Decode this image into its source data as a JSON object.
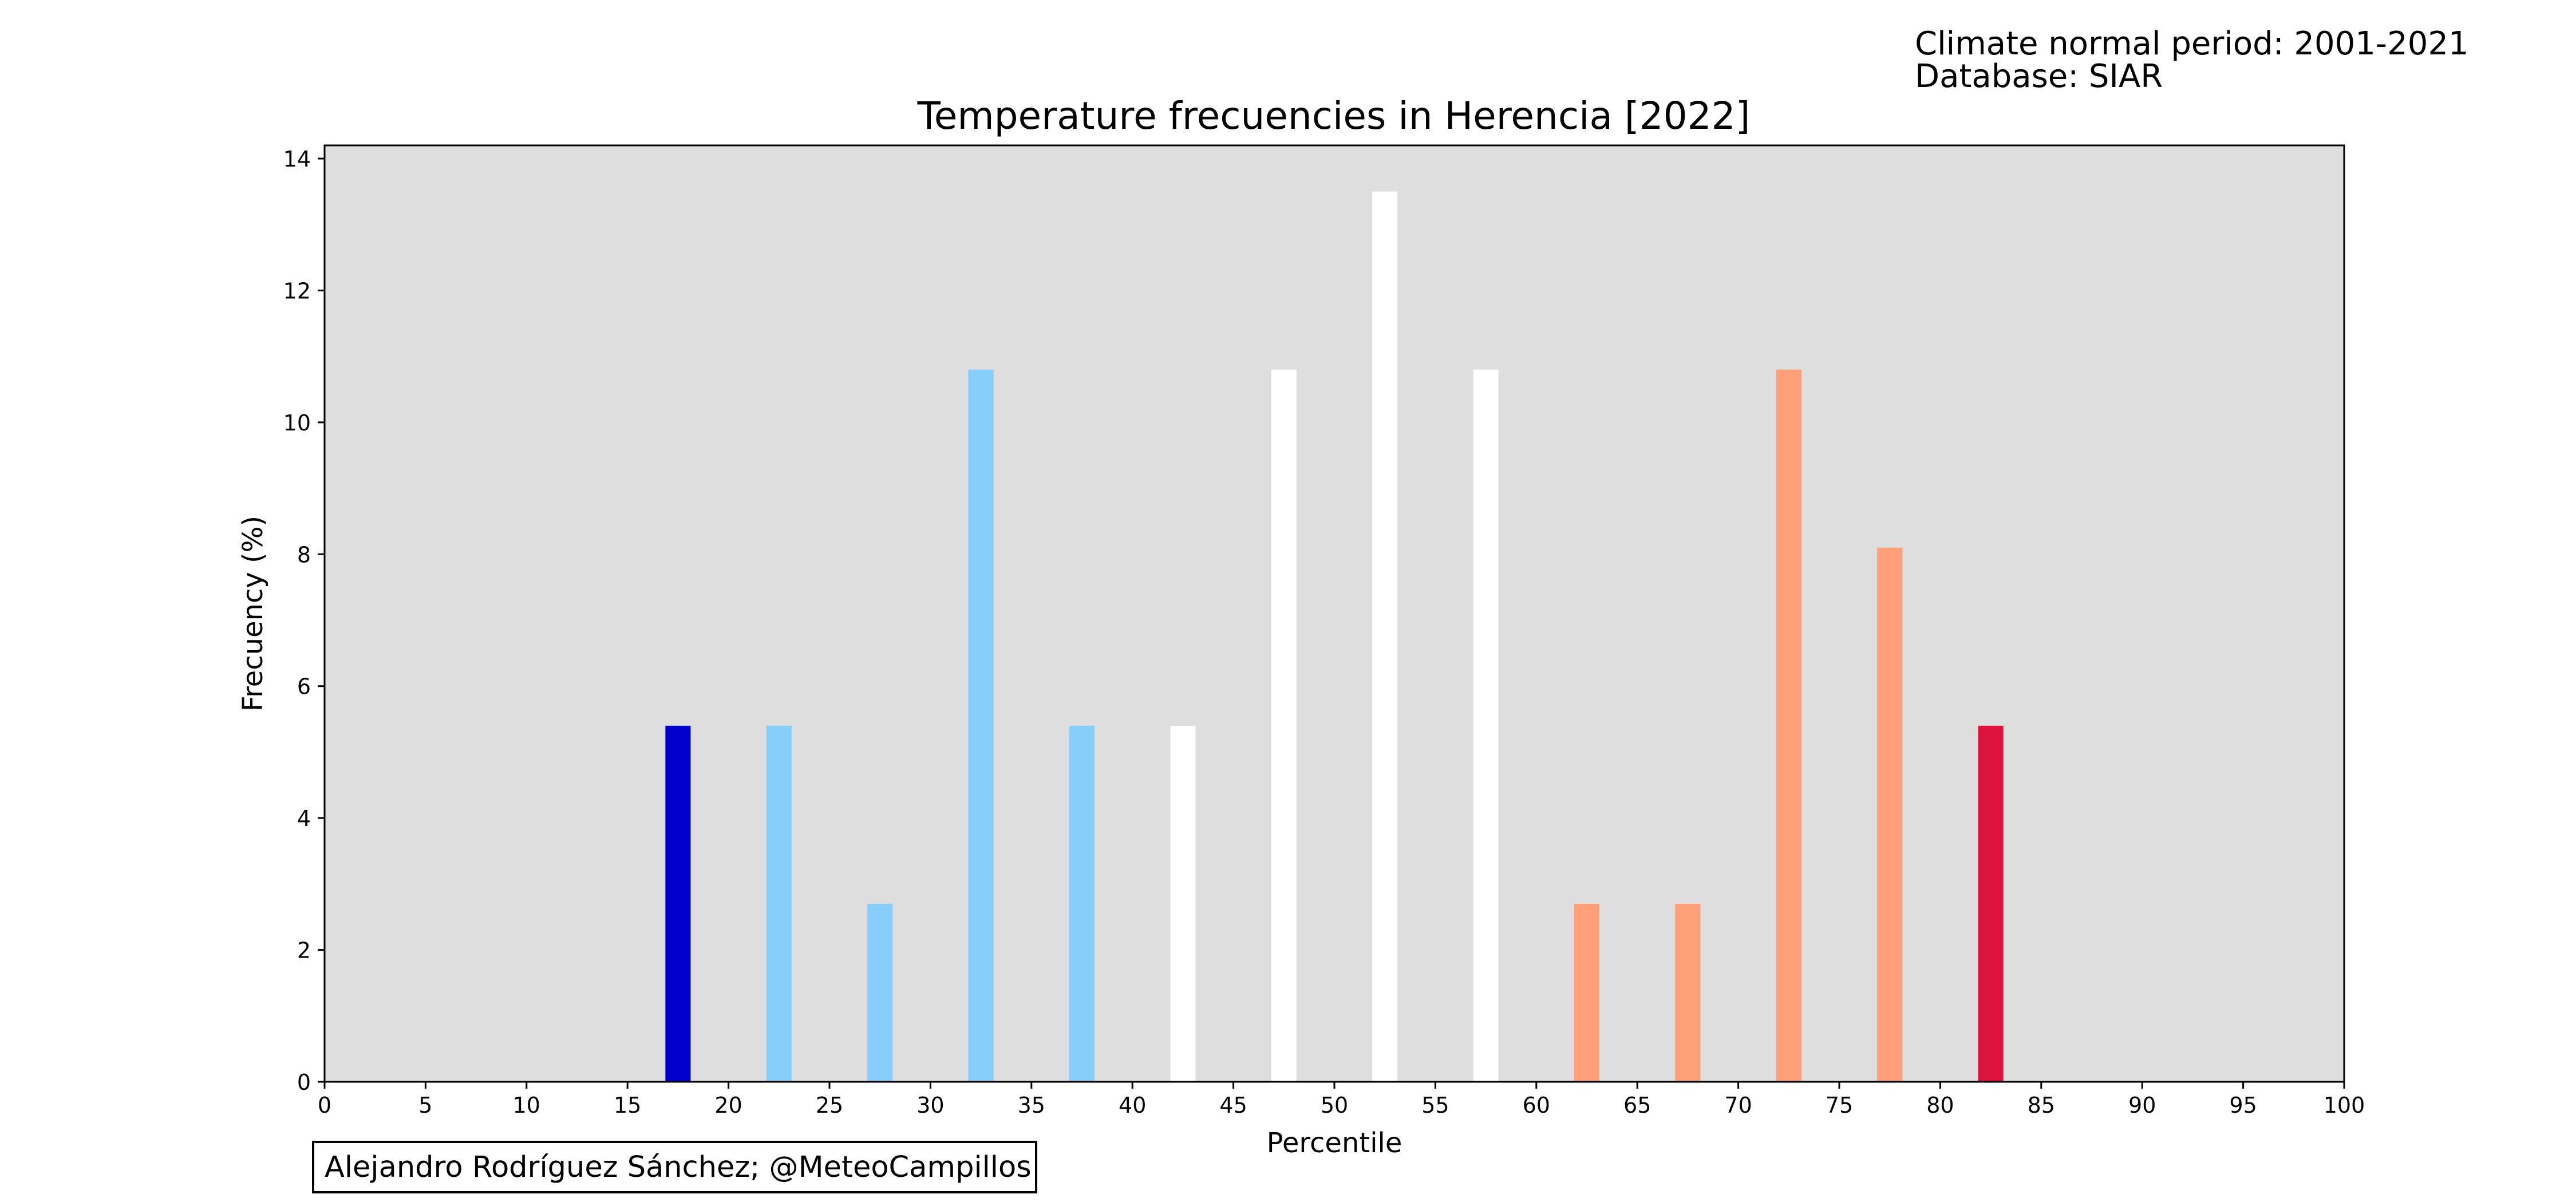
{
  "info": {
    "line1": "Climate normal period: 2001-2021",
    "line2": "Database: SIAR"
  },
  "credit": "Alejandro Rodríguez Sánchez; @MeteoCampillos",
  "chart_data": {
    "type": "bar",
    "title": "Temperature frecuencies in Herencia [2022]",
    "xlabel": "Percentile",
    "ylabel": "Frecuency (%)",
    "xlim": [
      0,
      100
    ],
    "ylim": [
      0,
      14.2
    ],
    "xticks": [
      0,
      5,
      10,
      15,
      20,
      25,
      30,
      35,
      40,
      45,
      50,
      55,
      60,
      65,
      70,
      75,
      80,
      85,
      90,
      95,
      100
    ],
    "yticks": [
      0,
      2,
      4,
      6,
      8,
      10,
      12,
      14
    ],
    "bar_width": 1.25,
    "grid": false,
    "plot_background": "#dedede",
    "bars": [
      {
        "x": 17.5,
        "value": 5.4,
        "color": "#0000cd"
      },
      {
        "x": 22.5,
        "value": 5.4,
        "color": "#87cefa"
      },
      {
        "x": 27.5,
        "value": 2.7,
        "color": "#87cefa"
      },
      {
        "x": 32.5,
        "value": 10.8,
        "color": "#87cefa"
      },
      {
        "x": 37.5,
        "value": 5.4,
        "color": "#87cefa"
      },
      {
        "x": 42.5,
        "value": 5.4,
        "color": "#ffffff"
      },
      {
        "x": 47.5,
        "value": 10.8,
        "color": "#ffffff"
      },
      {
        "x": 52.5,
        "value": 13.5,
        "color": "#ffffff"
      },
      {
        "x": 57.5,
        "value": 10.8,
        "color": "#ffffff"
      },
      {
        "x": 62.5,
        "value": 2.7,
        "color": "#ffa07a"
      },
      {
        "x": 67.5,
        "value": 2.7,
        "color": "#ffa07a"
      },
      {
        "x": 72.5,
        "value": 10.8,
        "color": "#ffa07a"
      },
      {
        "x": 77.5,
        "value": 8.1,
        "color": "#ffa07a"
      },
      {
        "x": 82.5,
        "value": 5.4,
        "color": "#dc143c"
      }
    ]
  }
}
